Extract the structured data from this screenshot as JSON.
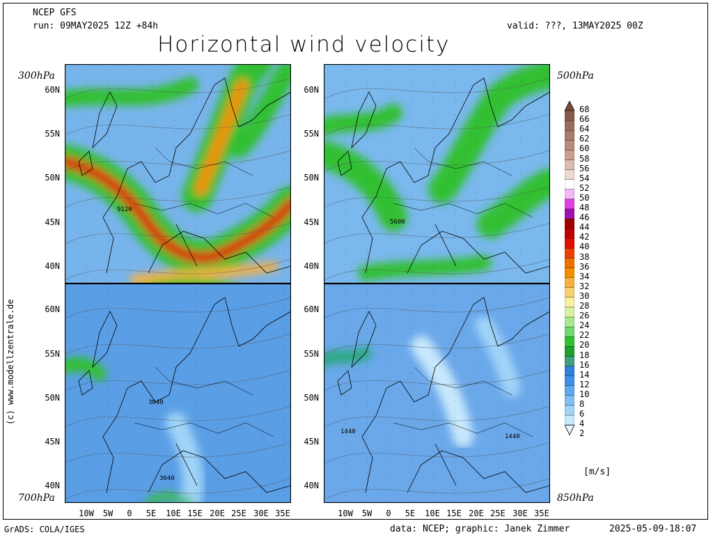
{
  "header": {
    "model": "NCEP GFS",
    "run": "run: 09MAY2025 12Z +84h",
    "valid": "valid: ???, 13MAY2025 00Z",
    "title": "Horizontal wind velocity"
  },
  "panels": [
    {
      "level": "300hPa",
      "contour_label": "9120"
    },
    {
      "level": "500hPa",
      "contour_label": "5600"
    },
    {
      "level": "700hPa",
      "contour_label": "3040",
      "contour_label_2": "3040"
    },
    {
      "level": "850hPa",
      "contour_label": "1440",
      "contour_label_2": "1440"
    }
  ],
  "lat_labels": [
    "60N",
    "55N",
    "50N",
    "45N",
    "40N"
  ],
  "lon_labels": [
    "10W",
    "5W",
    "0",
    "5E",
    "10E",
    "15E",
    "20E",
    "25E",
    "30E",
    "35E"
  ],
  "colorbar": {
    "unit": "[m/s]",
    "ticks": [
      "68",
      "66",
      "64",
      "62",
      "60",
      "58",
      "56",
      "54",
      "52",
      "50",
      "48",
      "46",
      "44",
      "42",
      "40",
      "38",
      "36",
      "34",
      "32",
      "30",
      "28",
      "26",
      "24",
      "22",
      "20",
      "18",
      "16",
      "14",
      "12",
      "10",
      "8",
      "6",
      "4",
      "2"
    ],
    "colors": [
      "#7a4a3a",
      "#8a5a4a",
      "#9a6a5a",
      "#aa7a6a",
      "#ba8a7a",
      "#cc9f90",
      "#ddbcb0",
      "#eed8cf",
      "#ffffff",
      "#f4b8f4",
      "#e040e0",
      "#a010b0",
      "#a00000",
      "#c00000",
      "#e01000",
      "#f04000",
      "#f07000",
      "#f09000",
      "#f8b040",
      "#f8d070",
      "#f8f0a0",
      "#d8f0a0",
      "#a8e890",
      "#70d870",
      "#30c030",
      "#20a030",
      "#40a080",
      "#3080e0",
      "#4090e8",
      "#60a8f0",
      "#80c0f0",
      "#a0d4f8",
      "#c8e8fc",
      "#e8f6ff"
    ]
  },
  "footer": {
    "left": "GrADS: COLA/IGES",
    "center": "data: NCEP; graphic: Janek Zimmer",
    "right": "2025-05-09-18:07",
    "credit": "(c) www.modellzentrale.de"
  }
}
